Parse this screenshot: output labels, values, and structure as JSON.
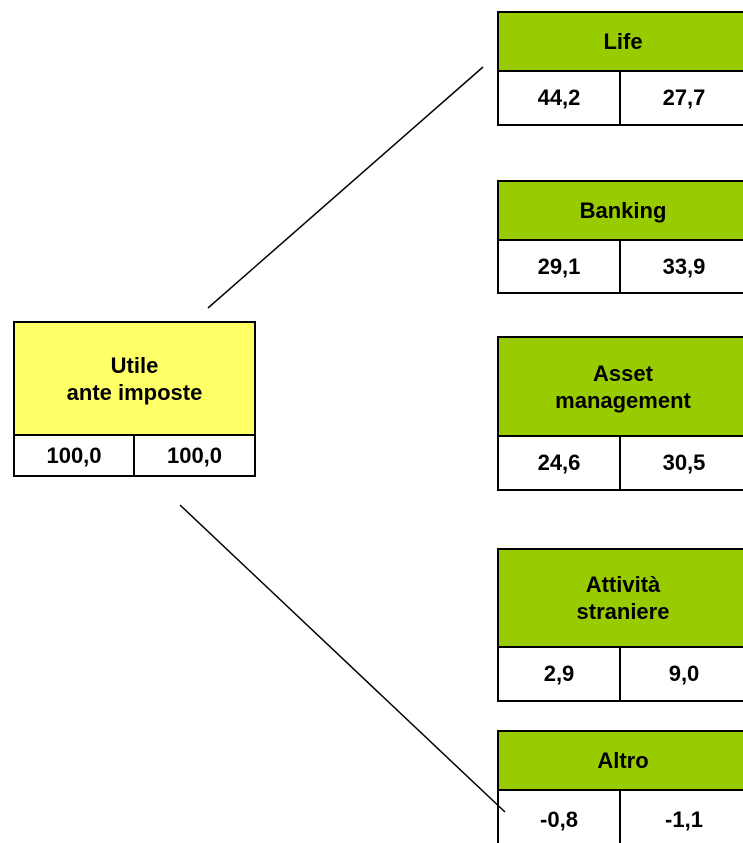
{
  "root": {
    "label": [
      "Utile",
      "ante imposte"
    ],
    "values": [
      "100,0",
      "100,0"
    ]
  },
  "nodes": [
    {
      "label": [
        "Life"
      ],
      "values": [
        "44,2",
        "27,7"
      ]
    },
    {
      "label": [
        "Banking"
      ],
      "values": [
        "29,1",
        "33,9"
      ]
    },
    {
      "label": [
        "Asset",
        "management"
      ],
      "values": [
        "24,6",
        "30,5"
      ]
    },
    {
      "label": [
        "Attività",
        "straniere"
      ],
      "values": [
        "2,9",
        "9,0"
      ]
    },
    {
      "label": [
        "Altro"
      ],
      "values": [
        "-0,8",
        "-1,1"
      ]
    }
  ]
}
